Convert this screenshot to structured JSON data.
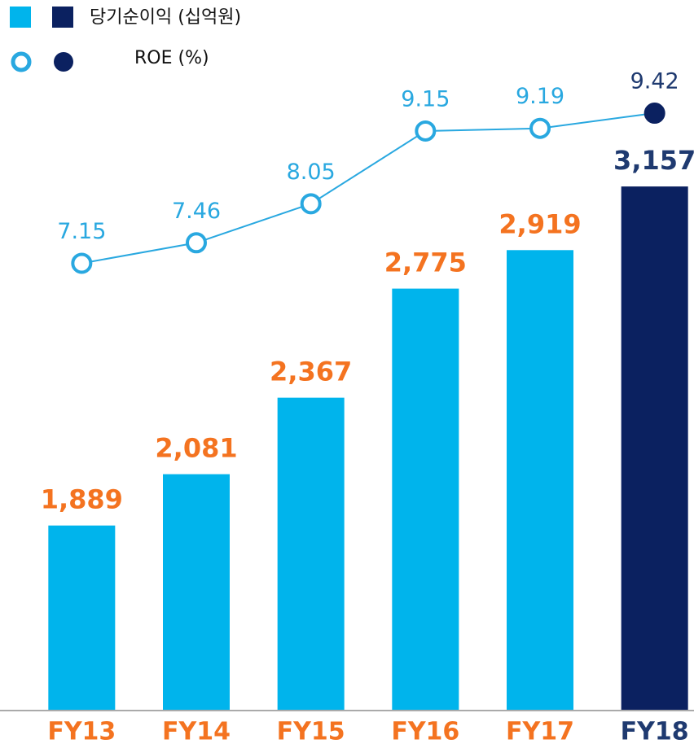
{
  "chart_data": {
    "type": "bar_line",
    "categories": [
      "FY13",
      "FY14",
      "FY15",
      "FY16",
      "FY17",
      "FY18"
    ],
    "series": [
      {
        "name": "당기순이익 (십억원)",
        "type": "bar",
        "color": "#00b4ec",
        "colors": [
          "#00b4ec",
          "#00b4ec",
          "#00b4ec",
          "#00b4ec",
          "#00b4ec",
          "#0b2160"
        ],
        "values": [
          1889,
          2081,
          2367,
          2775,
          2919,
          3157
        ],
        "value_labels": [
          "1,889",
          "2,081",
          "2,367",
          "2,775",
          "2,919",
          "3,157"
        ],
        "label_colors": [
          "#f47320",
          "#f47320",
          "#f47320",
          "#f47320",
          "#f47320",
          "#1f3a70"
        ]
      },
      {
        "name": "ROE (%)",
        "type": "line",
        "axis": "y2",
        "color": "#29a8e0",
        "marker_fills": [
          "#ffffff",
          "#ffffff",
          "#ffffff",
          "#ffffff",
          "#ffffff",
          "#0b2160"
        ],
        "values": [
          7.15,
          7.46,
          8.05,
          9.15,
          9.19,
          9.42
        ],
        "value_label_colors": [
          "#29a8e0",
          "#29a8e0",
          "#29a8e0",
          "#29a8e0",
          "#29a8e0",
          "#1f3a70"
        ]
      }
    ],
    "legend_colors": [
      "#00b4ec",
      "#0b2160"
    ],
    "ylim": [
      1200,
      3550
    ],
    "y2lim": [
      0.4,
      9.9
    ]
  }
}
